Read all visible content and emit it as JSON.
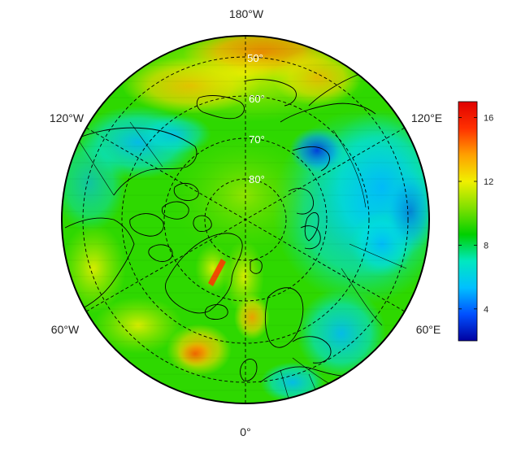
{
  "map": {
    "projection": "north-polar-stereographic",
    "longitude_labels": {
      "top": "180°W",
      "upper_left": "120°W",
      "upper_right": "120°E",
      "lower_left": "60°W",
      "lower_right": "60°E",
      "bottom": "0°"
    },
    "latitude_labels": [
      "50°",
      "60°",
      "70°",
      "80°"
    ],
    "colors": {
      "land_outline": "#000000",
      "graticule": "#000000",
      "boundary": "#000000"
    }
  },
  "colorbar": {
    "min": 2,
    "max": 17,
    "ticks": [
      {
        "value": 4,
        "label": "4"
      },
      {
        "value": 8,
        "label": "8"
      },
      {
        "value": 12,
        "label": "12"
      },
      {
        "value": 16,
        "label": "16"
      }
    ],
    "colormap": [
      "#0000a0",
      "#0050ff",
      "#00c0ff",
      "#00e8c0",
      "#00d000",
      "#7fe000",
      "#f0f000",
      "#ffa000",
      "#ff3000",
      "#e00000"
    ]
  }
}
